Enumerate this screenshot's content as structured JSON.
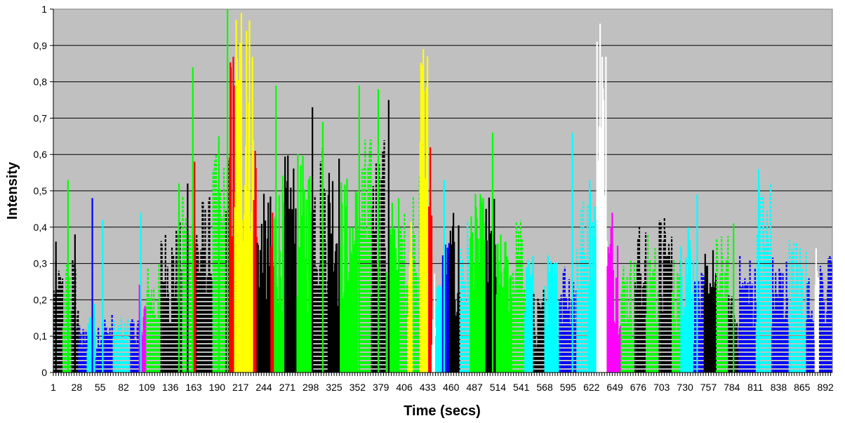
{
  "chart_data": {
    "type": "bar",
    "xlabel": "Time (secs)",
    "ylabel": "Intensity",
    "ylim": [
      0,
      1
    ],
    "xlim": [
      1,
      900
    ],
    "y_ticks": [
      "0",
      "0,1",
      "0,2",
      "0,3",
      "0,4",
      "0,5",
      "0,6",
      "0,7",
      "0,8",
      "0,9",
      "1"
    ],
    "x_ticks": [
      "1",
      "28",
      "55",
      "82",
      "109",
      "136",
      "163",
      "190",
      "217",
      "244",
      "271",
      "298",
      "325",
      "352",
      "379",
      "406",
      "433",
      "460",
      "487",
      "514",
      "541",
      "568",
      "595",
      "622",
      "649",
      "676",
      "703",
      "730",
      "757",
      "784",
      "811",
      "838",
      "865",
      "892"
    ],
    "grid": true,
    "background_color": "#c0c0c0",
    "series_colors": {
      "green": "#00ff00",
      "black": "#000000",
      "blue": "#0000ff",
      "cyan": "#00ffff",
      "yellow": "#ffff00",
      "red": "#ff0000",
      "magenta": "#ff00ff",
      "white": "#ffffff"
    },
    "segments": [
      {
        "from": 1,
        "to": 12,
        "color": "black",
        "style": "dashed",
        "level": 0.28
      },
      {
        "from": 12,
        "to": 22,
        "color": "green",
        "style": "dashed",
        "level": 0.3
      },
      {
        "from": 22,
        "to": 30,
        "color": "black",
        "style": "dashed",
        "level": 0.3
      },
      {
        "from": 30,
        "to": 40,
        "color": "blue",
        "style": "dashed",
        "level": 0.12
      },
      {
        "from": 40,
        "to": 50,
        "color": "cyan",
        "style": "solid",
        "level": 0.18
      },
      {
        "from": 50,
        "to": 70,
        "color": "blue",
        "style": "dashed",
        "level": 0.15
      },
      {
        "from": 70,
        "to": 90,
        "color": "cyan",
        "style": "dashed",
        "level": 0.14
      },
      {
        "from": 90,
        "to": 100,
        "color": "blue",
        "style": "dashed",
        "level": 0.15
      },
      {
        "from": 100,
        "to": 108,
        "color": "magenta",
        "style": "solid",
        "level": 0.22
      },
      {
        "from": 108,
        "to": 125,
        "color": "green",
        "style": "dashed",
        "level": 0.28
      },
      {
        "from": 125,
        "to": 150,
        "color": "black",
        "style": "dashed",
        "level": 0.38
      },
      {
        "from": 150,
        "to": 162,
        "color": "green",
        "style": "dashed",
        "level": 0.45
      },
      {
        "from": 162,
        "to": 166,
        "color": "red",
        "style": "solid",
        "level": 0.55
      },
      {
        "from": 166,
        "to": 185,
        "color": "black",
        "style": "dashed",
        "level": 0.45
      },
      {
        "from": 185,
        "to": 200,
        "color": "green",
        "style": "dashed",
        "level": 0.55
      },
      {
        "from": 200,
        "to": 204,
        "color": "black",
        "style": "dashed",
        "level": 0.55
      },
      {
        "from": 204,
        "to": 210,
        "color": "red",
        "style": "solid",
        "level": 0.85
      },
      {
        "from": 210,
        "to": 232,
        "color": "yellow",
        "style": "solid",
        "level": 0.95
      },
      {
        "from": 232,
        "to": 236,
        "color": "red",
        "style": "solid",
        "level": 0.6
      },
      {
        "from": 236,
        "to": 252,
        "color": "black",
        "style": "solid",
        "level": 0.45
      },
      {
        "from": 252,
        "to": 256,
        "color": "red",
        "style": "solid",
        "level": 0.42
      },
      {
        "from": 256,
        "to": 268,
        "color": "green",
        "style": "solid",
        "level": 0.5
      },
      {
        "from": 268,
        "to": 282,
        "color": "black",
        "style": "solid",
        "level": 0.55
      },
      {
        "from": 282,
        "to": 300,
        "color": "green",
        "style": "solid",
        "level": 0.55
      },
      {
        "from": 300,
        "to": 318,
        "color": "black",
        "style": "dashed",
        "level": 0.6
      },
      {
        "from": 318,
        "to": 332,
        "color": "black",
        "style": "solid",
        "level": 0.58
      },
      {
        "from": 332,
        "to": 352,
        "color": "green",
        "style": "solid",
        "level": 0.5
      },
      {
        "from": 352,
        "to": 368,
        "color": "green",
        "style": "dashed",
        "level": 0.6
      },
      {
        "from": 368,
        "to": 385,
        "color": "black",
        "style": "dashed",
        "level": 0.6
      },
      {
        "from": 385,
        "to": 400,
        "color": "green",
        "style": "solid",
        "level": 0.45
      },
      {
        "from": 400,
        "to": 410,
        "color": "green",
        "style": "dashed",
        "level": 0.42
      },
      {
        "from": 410,
        "to": 416,
        "color": "yellow",
        "style": "solid",
        "level": 0.45
      },
      {
        "from": 416,
        "to": 424,
        "color": "green",
        "style": "dashed",
        "level": 0.5
      },
      {
        "from": 424,
        "to": 434,
        "color": "yellow",
        "style": "solid",
        "level": 0.85
      },
      {
        "from": 434,
        "to": 438,
        "color": "red",
        "style": "solid",
        "level": 0.6
      },
      {
        "from": 438,
        "to": 442,
        "color": "white",
        "style": "solid",
        "level": 0.28
      },
      {
        "from": 442,
        "to": 450,
        "color": "cyan",
        "style": "solid",
        "level": 0.25
      },
      {
        "from": 450,
        "to": 458,
        "color": "blue",
        "style": "solid",
        "level": 0.35
      },
      {
        "from": 458,
        "to": 470,
        "color": "black",
        "style": "solid",
        "level": 0.4
      },
      {
        "from": 470,
        "to": 482,
        "color": "cyan",
        "style": "dashed",
        "level": 0.4
      },
      {
        "from": 482,
        "to": 500,
        "color": "green",
        "style": "solid",
        "level": 0.45
      },
      {
        "from": 500,
        "to": 512,
        "color": "black",
        "style": "solid",
        "level": 0.45
      },
      {
        "from": 512,
        "to": 530,
        "color": "green",
        "style": "solid",
        "level": 0.35
      },
      {
        "from": 530,
        "to": 545,
        "color": "green",
        "style": "dashed",
        "level": 0.4
      },
      {
        "from": 545,
        "to": 555,
        "color": "cyan",
        "style": "solid",
        "level": 0.3
      },
      {
        "from": 555,
        "to": 568,
        "color": "black",
        "style": "dashed",
        "level": 0.22
      },
      {
        "from": 568,
        "to": 585,
        "color": "cyan",
        "style": "solid",
        "level": 0.3
      },
      {
        "from": 585,
        "to": 605,
        "color": "blue",
        "style": "dashed",
        "level": 0.3
      },
      {
        "from": 605,
        "to": 618,
        "color": "cyan",
        "style": "dashed",
        "level": 0.45
      },
      {
        "from": 618,
        "to": 628,
        "color": "cyan",
        "style": "solid",
        "level": 0.5
      },
      {
        "from": 628,
        "to": 640,
        "color": "white",
        "style": "solid",
        "level": 0.9
      },
      {
        "from": 640,
        "to": 656,
        "color": "magenta",
        "style": "solid",
        "level": 0.4
      },
      {
        "from": 656,
        "to": 672,
        "color": "green",
        "style": "dashed",
        "level": 0.3
      },
      {
        "from": 672,
        "to": 685,
        "color": "black",
        "style": "dashed",
        "level": 0.38
      },
      {
        "from": 685,
        "to": 700,
        "color": "green",
        "style": "dashed",
        "level": 0.35
      },
      {
        "from": 700,
        "to": 715,
        "color": "black",
        "style": "dashed",
        "level": 0.4
      },
      {
        "from": 715,
        "to": 725,
        "color": "green",
        "style": "dashed",
        "level": 0.3
      },
      {
        "from": 725,
        "to": 740,
        "color": "cyan",
        "style": "solid",
        "level": 0.45
      },
      {
        "from": 740,
        "to": 752,
        "color": "blue",
        "style": "dashed",
        "level": 0.25
      },
      {
        "from": 752,
        "to": 766,
        "color": "black",
        "style": "solid",
        "level": 0.32
      },
      {
        "from": 766,
        "to": 780,
        "color": "green",
        "style": "dashed",
        "level": 0.35
      },
      {
        "from": 780,
        "to": 792,
        "color": "black",
        "style": "dashed",
        "level": 0.2
      },
      {
        "from": 792,
        "to": 812,
        "color": "blue",
        "style": "dashed",
        "level": 0.3
      },
      {
        "from": 812,
        "to": 830,
        "color": "cyan",
        "style": "dashed",
        "level": 0.5
      },
      {
        "from": 830,
        "to": 850,
        "color": "blue",
        "style": "dashed",
        "level": 0.3
      },
      {
        "from": 850,
        "to": 870,
        "color": "cyan",
        "style": "dashed",
        "level": 0.35
      },
      {
        "from": 870,
        "to": 880,
        "color": "blue",
        "style": "dashed",
        "level": 0.25
      },
      {
        "from": 880,
        "to": 885,
        "color": "white",
        "style": "solid",
        "level": 0.32
      },
      {
        "from": 885,
        "to": 900,
        "color": "blue",
        "style": "dashed",
        "level": 0.3
      }
    ],
    "peaks": [
      {
        "x": 4,
        "value": 0.36,
        "color": "black"
      },
      {
        "x": 18,
        "value": 0.53,
        "color": "green"
      },
      {
        "x": 26,
        "value": 0.38,
        "color": "black"
      },
      {
        "x": 46,
        "value": 0.48,
        "color": "blue"
      },
      {
        "x": 58,
        "value": 0.42,
        "color": "cyan"
      },
      {
        "x": 102,
        "value": 0.44,
        "color": "cyan"
      },
      {
        "x": 146,
        "value": 0.52,
        "color": "green"
      },
      {
        "x": 156,
        "value": 0.52,
        "color": "black"
      },
      {
        "x": 162,
        "value": 0.84,
        "color": "green"
      },
      {
        "x": 164,
        "value": 0.58,
        "color": "red"
      },
      {
        "x": 192,
        "value": 0.65,
        "color": "green"
      },
      {
        "x": 202,
        "value": 1.0,
        "color": "green"
      },
      {
        "x": 206,
        "value": 0.84,
        "color": "red"
      },
      {
        "x": 212,
        "value": 0.97,
        "color": "yellow"
      },
      {
        "x": 218,
        "value": 0.99,
        "color": "yellow"
      },
      {
        "x": 224,
        "value": 0.94,
        "color": "yellow"
      },
      {
        "x": 234,
        "value": 0.61,
        "color": "red"
      },
      {
        "x": 254,
        "value": 0.44,
        "color": "red"
      },
      {
        "x": 258,
        "value": 0.79,
        "color": "green"
      },
      {
        "x": 300,
        "value": 0.73,
        "color": "black"
      },
      {
        "x": 312,
        "value": 0.69,
        "color": "green"
      },
      {
        "x": 354,
        "value": 0.79,
        "color": "green"
      },
      {
        "x": 376,
        "value": 0.78,
        "color": "green"
      },
      {
        "x": 388,
        "value": 0.75,
        "color": "black"
      },
      {
        "x": 428,
        "value": 0.89,
        "color": "yellow"
      },
      {
        "x": 436,
        "value": 0.62,
        "color": "red"
      },
      {
        "x": 452,
        "value": 0.53,
        "color": "cyan"
      },
      {
        "x": 508,
        "value": 0.66,
        "color": "green"
      },
      {
        "x": 600,
        "value": 0.66,
        "color": "cyan"
      },
      {
        "x": 620,
        "value": 0.53,
        "color": "cyan"
      },
      {
        "x": 632,
        "value": 0.96,
        "color": "white"
      },
      {
        "x": 636,
        "value": 0.75,
        "color": "white"
      },
      {
        "x": 646,
        "value": 0.44,
        "color": "magenta"
      },
      {
        "x": 744,
        "value": 0.49,
        "color": "cyan"
      },
      {
        "x": 786,
        "value": 0.41,
        "color": "green"
      },
      {
        "x": 815,
        "value": 0.56,
        "color": "cyan"
      }
    ]
  }
}
